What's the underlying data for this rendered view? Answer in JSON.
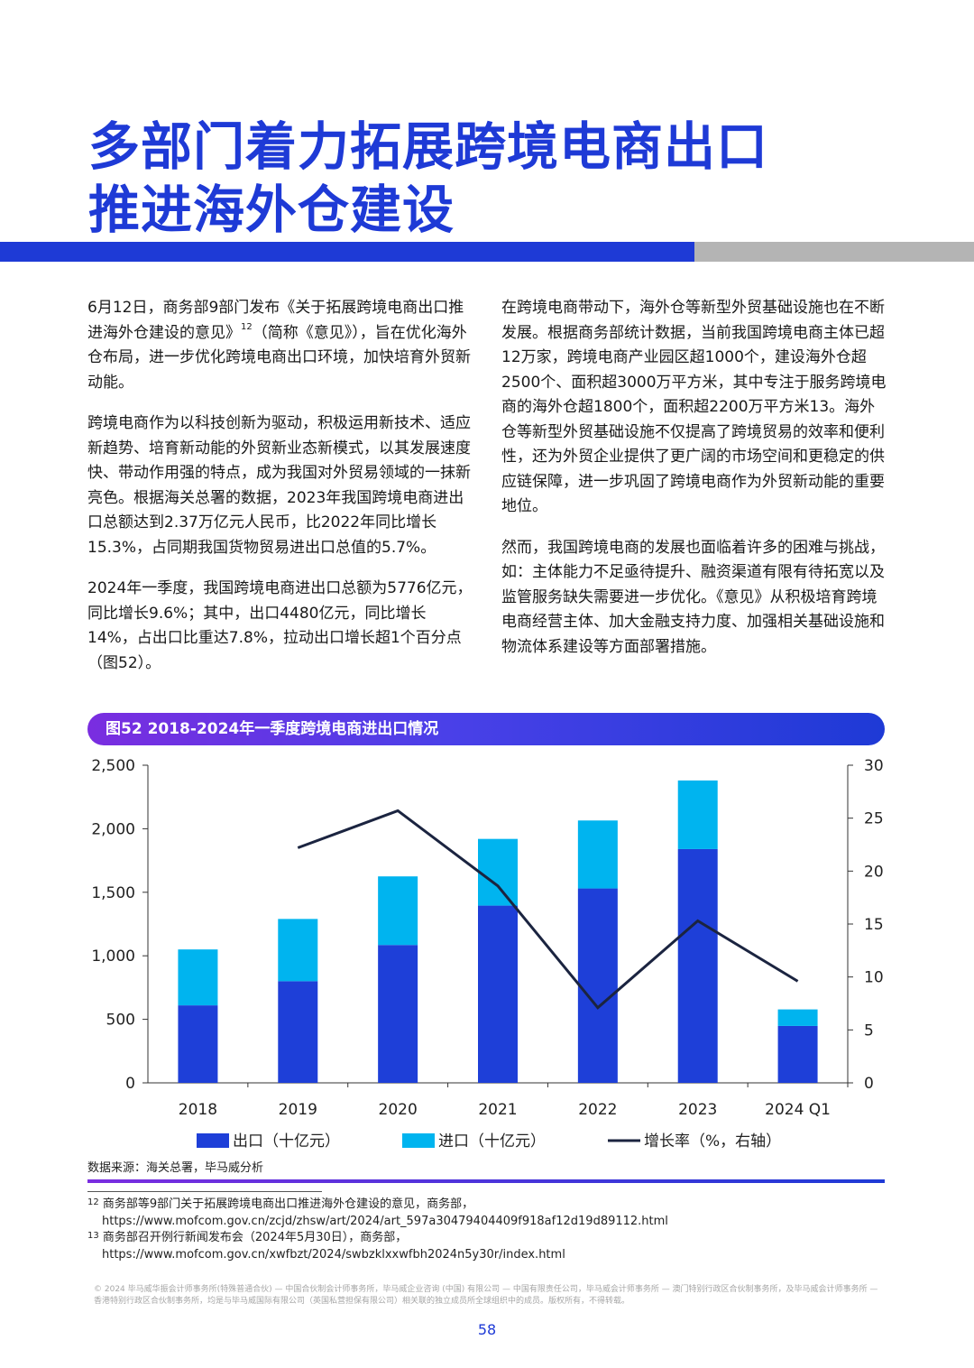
{
  "header": {
    "title_line1": "多部门着力拓展跨境电商出口",
    "title_line2": "推进海外仓建设"
  },
  "body": {
    "left": {
      "p1_a": "6月12日，商务部9部门发布《关于拓展跨境电商出口推进海外仓建设的意见》",
      "p1_sup": "12",
      "p1_b": "（简称《意见》），旨在优化海外仓布局，进一步优化跨境电商出口环境，加快培育外贸新动能。",
      "p2": "跨境电商作为以科技创新为驱动，积极运用新技术、适应新趋势、培育新动能的外贸新业态新模式，以其发展速度快、带动作用强的特点，成为我国对外贸易领域的一抹新亮色。根据海关总署的数据，2023年我国跨境电商进出口总额达到2.37万亿元人民币，比2022年同比增长15.3%，占同期我国货物贸易进出口总值的5.7%。",
      "p3": "2024年一季度，我国跨境电商进出口总额为5776亿元，同比增长9.6%；其中，出口4480亿元，同比增长14%，占出口比重达7.8%，拉动出口增长超1个百分点（图52）。"
    },
    "right": {
      "p1": "在跨境电商带动下，海外仓等新型外贸基础设施也在不断发展。根据商务部统计数据，当前我国跨境电商主体已超12万家，跨境电商产业园区超1000个，建设海外仓超2500个、面积超3000万平方米，其中专注于服务跨境电商的海外仓超1800个，面积超2200万平方米13。海外仓等新型外贸基础设施不仅提高了跨境贸易的效率和便利性，还为外贸企业提供了更广阔的市场空间和更稳定的供应链保障，进一步巩固了跨境电商作为外贸新动能的重要地位。",
      "p2": "然而，我国跨境电商的发展也面临着许多的困难与挑战，如：主体能力不足亟待提升、融资渠道有限有待拓宽以及监管服务缺失需要进一步优化。《意见》从积极培育跨境电商经营主体、加大金融支持力度、加强相关基础设施和物流体系建设等方面部署措施。"
    }
  },
  "figure": {
    "title": "图52 2018-2024年一季度跨境电商进出口情况",
    "source": "数据来源：海关总署，毕马威分析"
  },
  "chart_data": {
    "type": "bar",
    "stacked": true,
    "categories": [
      "2018",
      "2019",
      "2020",
      "2021",
      "2022",
      "2023",
      "2024 Q1"
    ],
    "series": [
      {
        "name": "出口（十亿元）",
        "type": "bar",
        "axis": "left",
        "color": "#1e3fd8",
        "values": [
          610,
          800,
          1085,
          1395,
          1530,
          1840,
          448
        ]
      },
      {
        "name": "进口（十亿元）",
        "type": "bar",
        "axis": "left",
        "color": "#00b4ef",
        "values": [
          440,
          490,
          540,
          525,
          535,
          540,
          130
        ]
      },
      {
        "name": "增长率（%，右轴）",
        "type": "line",
        "axis": "right",
        "color": "#1b2440",
        "values": [
          null,
          22.2,
          25.7,
          18.6,
          7.1,
          15.3,
          9.6
        ]
      }
    ],
    "ylim_left": [
      0,
      2500
    ],
    "yticks_left": [
      "0",
      "500",
      "1,000",
      "1,500",
      "2,000",
      "2,500"
    ],
    "ylim_right": [
      0,
      30
    ],
    "yticks_right": [
      "0",
      "5",
      "10",
      "15",
      "20",
      "25",
      "30"
    ],
    "grid": false,
    "legend_position": "bottom"
  },
  "footnotes": [
    {
      "num": "12",
      "text": "商务部等9部门关于拓展跨境电商出口推进海外仓建设的意见，商务部，",
      "url": "https://www.mofcom.gov.cn/zcjd/zhsw/art/2024/art_597a30479404409f918af12d19d89112.html"
    },
    {
      "num": "13",
      "text": "商务部召开例行新闻发布会（2024年5月30日），商务部，",
      "url": "https://www.mofcom.gov.cn/xwfbzt/2024/swbzklxxwfbh2024n5y30r/index.html"
    }
  ],
  "footer": {
    "copyright": "© 2024 毕马威华振会计师事务所(特殊普通合伙) — 中国合伙制会计师事务所，毕马威企业咨询 (中国) 有限公司 — 中国有限责任公司，毕马威会计师事务所 — 澳门特别行政区合伙制事务所，及毕马威会计师事务所 — 香港特别行政区合伙制事务所，均是与毕马威国际有限公司（英国私营担保有限公司）相关联的独立成员所全球组织中的成员。版权所有，不得转载。",
    "page_number": "58"
  }
}
